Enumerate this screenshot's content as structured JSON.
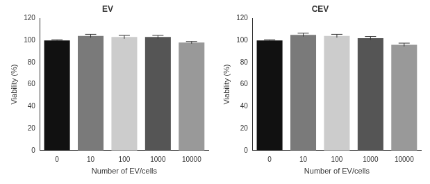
{
  "chart_data": [
    {
      "type": "bar",
      "title": "EV",
      "x_label": "Number of EV/cells",
      "y_label": "Viability (%)",
      "categories": [
        "0",
        "10",
        "100",
        "1000",
        "10000"
      ],
      "values": [
        100,
        104,
        103,
        103,
        98
      ],
      "errors": [
        0.5,
        1.5,
        1.5,
        1.5,
        1
      ],
      "colors": [
        "#111111",
        "#7a7a7a",
        "#cccccc",
        "#555555",
        "#999999"
      ],
      "ylim": [
        0,
        120
      ],
      "yticks": [
        0,
        20,
        40,
        60,
        80,
        100,
        120
      ],
      "grid": false
    },
    {
      "type": "bar",
      "title": "CEV",
      "x_label": "Number of EV/cells",
      "y_label": "Viability (%)",
      "categories": [
        "0",
        "10",
        "100",
        "1000",
        "10000"
      ],
      "values": [
        100,
        105,
        104,
        102,
        96
      ],
      "errors": [
        0.5,
        1.5,
        1.5,
        1.5,
        1.5
      ],
      "colors": [
        "#111111",
        "#7a7a7a",
        "#cccccc",
        "#555555",
        "#999999"
      ],
      "ylim": [
        0,
        120
      ],
      "yticks": [
        0,
        20,
        40,
        60,
        80,
        100,
        120
      ],
      "grid": false
    }
  ]
}
